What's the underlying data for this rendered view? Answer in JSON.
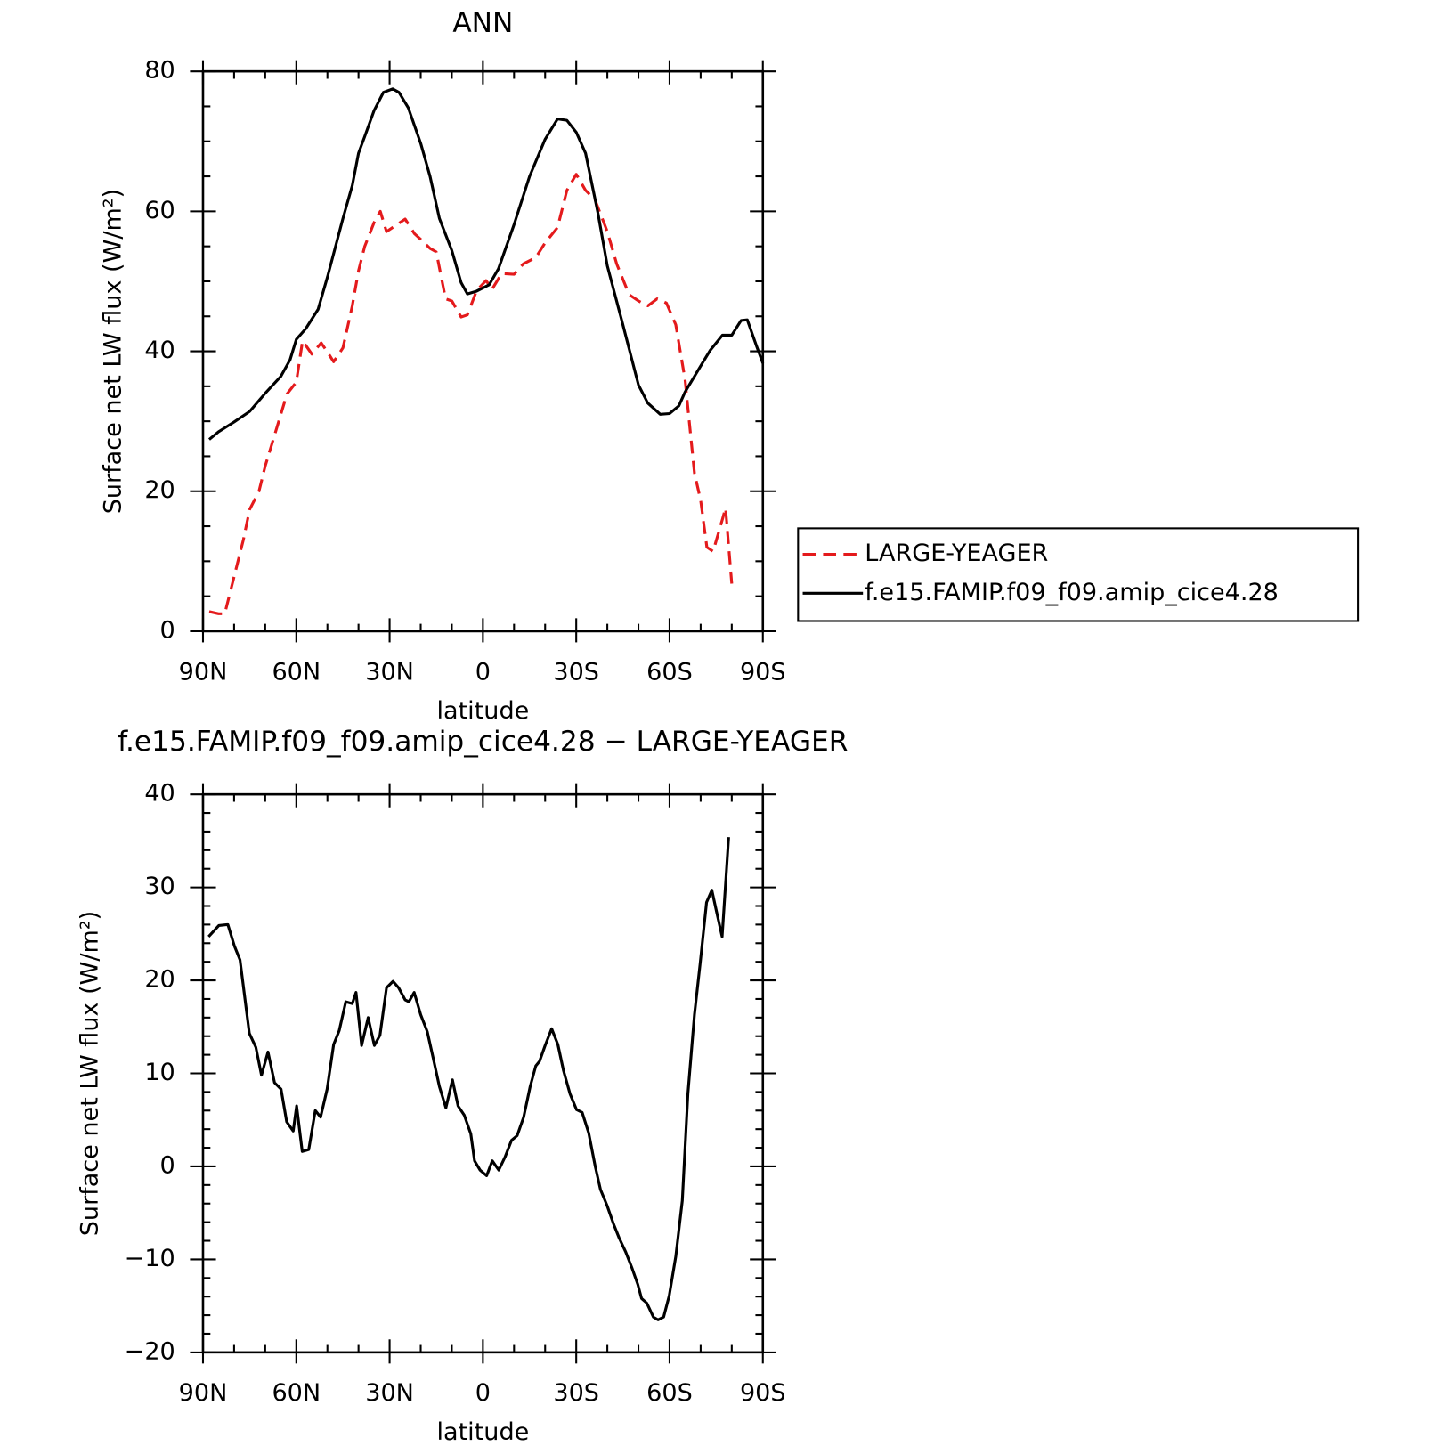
{
  "chart_data": [
    {
      "type": "line",
      "title": "ANN",
      "xlabel": "latitude",
      "ylabel": "Surface net LW flux (W/m²)",
      "xlim": [
        90,
        -90
      ],
      "xticks": [
        {
          "value": 90,
          "label": "90N"
        },
        {
          "value": 60,
          "label": "60N"
        },
        {
          "value": 30,
          "label": "30N"
        },
        0,
        {
          "value": -30,
          "label": "30S"
        },
        {
          "value": -60,
          "label": "60S"
        },
        {
          "value": -90,
          "label": "90S"
        }
      ],
      "ylim": [
        0,
        80
      ],
      "yticks": [
        0,
        20,
        40,
        60,
        80
      ],
      "grid": false,
      "legend": "right",
      "series": [
        {
          "name": "LARGE-YEAGER",
          "color": "#e41a1c",
          "line_style": "dashed",
          "x": [
            88,
            85,
            83,
            80,
            77,
            75,
            72,
            70,
            67,
            63,
            60,
            58,
            55,
            52,
            50,
            48,
            45,
            42,
            40,
            38,
            35,
            33,
            31,
            28,
            25,
            22,
            20,
            17,
            15,
            12,
            10,
            7,
            5,
            2,
            -1,
            -3,
            -6,
            -10,
            -13,
            -17,
            -20,
            -24,
            -27,
            -30,
            -33,
            -36,
            -40,
            -43,
            -47,
            -50,
            -53,
            -56,
            -59,
            -62,
            -65,
            -68,
            -70,
            -72,
            -74,
            -77,
            -78,
            -80
          ],
          "values": [
            2.8,
            2.5,
            2.5,
            7.8,
            13.1,
            17.4,
            20,
            23.6,
            28,
            33.9,
            35.6,
            41.5,
            39.6,
            41.2,
            39.9,
            38.5,
            40.5,
            46.5,
            51.5,
            55,
            58.4,
            60,
            57.1,
            58,
            58.9,
            56.8,
            56,
            54.7,
            54.2,
            47.5,
            47.2,
            44.9,
            45.2,
            48.7,
            50.1,
            48.9,
            51.1,
            51,
            52.5,
            53.4,
            55.5,
            57.7,
            63,
            65.3,
            63,
            61.7,
            57.1,
            52.5,
            48.1,
            47.2,
            46.5,
            47.5,
            46.9,
            43.8,
            35.9,
            22.6,
            18.7,
            12,
            11.4,
            16,
            17.6,
            6.8
          ]
        },
        {
          "name": "f.e15.FAMIP.f09_f09.amip_cice4.28",
          "color": "#000000",
          "line_style": "solid",
          "x": [
            88,
            85,
            80,
            75,
            70,
            65,
            62,
            60,
            57,
            53,
            50,
            45,
            42,
            40,
            38,
            35,
            32,
            29,
            27,
            24,
            20,
            17,
            14,
            10,
            7,
            5,
            2,
            -2,
            -5,
            -10,
            -15,
            -20,
            -24,
            -27,
            -30,
            -33,
            -37,
            -40,
            -45,
            -50,
            -53,
            -57,
            -60,
            -63,
            -65,
            -70,
            -73,
            -77,
            -80,
            -83,
            -85,
            -88,
            -90
          ],
          "values": [
            27.4,
            28.5,
            29.9,
            31.4,
            34,
            36.4,
            38.8,
            41.7,
            43.2,
            46,
            50.6,
            59,
            63.7,
            68.3,
            70.7,
            74.4,
            77,
            77.5,
            77,
            74.8,
            69.7,
            65,
            59,
            54.4,
            49.8,
            48.2,
            48.6,
            49.5,
            51.8,
            58.1,
            65,
            70.3,
            73.2,
            73,
            71.3,
            68.3,
            59.7,
            52.2,
            43.8,
            35.2,
            32.6,
            31,
            31.1,
            32.2,
            34.2,
            37.9,
            40.1,
            42.3,
            42.3,
            44.4,
            44.5,
            40.7,
            38.3
          ]
        }
      ]
    },
    {
      "type": "line",
      "title": "f.e15.FAMIP.f09_f09.amip_cice4.28 − LARGE-YEAGER",
      "xlabel": "latitude",
      "ylabel": "Surface net LW flux (W/m²)",
      "xlim": [
        90,
        -90
      ],
      "xticks": [
        {
          "value": 90,
          "label": "90N"
        },
        {
          "value": 60,
          "label": "60N"
        },
        {
          "value": 30,
          "label": "30N"
        },
        0,
        {
          "value": -30,
          "label": "30S"
        },
        {
          "value": -60,
          "label": "60S"
        },
        {
          "value": -90,
          "label": "90S"
        }
      ],
      "ylim": [
        -20,
        40
      ],
      "yticks": [
        {
          "value": -20,
          "label": "−20"
        },
        {
          "value": -10,
          "label": "−10"
        },
        0,
        10,
        20,
        30,
        40
      ],
      "grid": false,
      "color": "#000000",
      "x": [
        88.2,
        84.9,
        82,
        79.9,
        78.1,
        75.1,
        73,
        71.2,
        69.1,
        67,
        64.9,
        63.1,
        61,
        59.9,
        58.1,
        56,
        53.9,
        52.2,
        50.1,
        48,
        46.2,
        44.1,
        42,
        40.8,
        39,
        36.9,
        34.9,
        33.1,
        31,
        28.9,
        27.1,
        25,
        23.8,
        22.1,
        20,
        17.9,
        16.1,
        14,
        11.9,
        9.8,
        8,
        6,
        3.9,
        2.7,
        0.9,
        -1.2,
        -3,
        -5.1,
        -7.1,
        -9.2,
        -11,
        -13.1,
        -15.2,
        -17,
        -18.2,
        -20,
        -22.1,
        -24.1,
        -25.9,
        -28,
        -30.1,
        -31.9,
        -34,
        -36.1,
        -37.8,
        -39.9,
        -42,
        -43.8,
        -45.9,
        -48,
        -49.8,
        -51,
        -52.7,
        -54.8,
        -56.3,
        -58.1,
        -59.9,
        -62,
        -64.1,
        -65.9,
        -68,
        -69.8,
        -71.9,
        -73.6,
        -75.1,
        -76.9,
        -79
      ],
      "values": [
        24.7,
        25.9,
        26,
        23.7,
        22.2,
        14.3,
        12.8,
        9.8,
        12.3,
        9,
        8.3,
        4.8,
        3.8,
        6.5,
        1.6,
        1.8,
        6,
        5.3,
        8.3,
        13.1,
        14.6,
        17.7,
        17.5,
        18.7,
        13,
        16,
        13,
        14.1,
        19.2,
        19.9,
        19.2,
        17.9,
        17.7,
        18.7,
        16.3,
        14.5,
        11.8,
        8.6,
        6.3,
        9.3,
        6.5,
        5.5,
        3.5,
        0.6,
        -0.4,
        -1,
        0.6,
        -0.4,
        1,
        2.8,
        3.3,
        5.3,
        8.6,
        10.8,
        11.3,
        13,
        14.8,
        13.1,
        10.3,
        7.8,
        6.1,
        5.8,
        3.6,
        0,
        -2.5,
        -4.2,
        -6.2,
        -7.7,
        -9.2,
        -11,
        -12.7,
        -14.2,
        -14.7,
        -16.2,
        -16.5,
        -16.2,
        -13.9,
        -9.7,
        -3.7,
        7.8,
        16.3,
        21.7,
        28.4,
        29.7,
        27.4,
        24.7,
        35.4
      ]
    }
  ]
}
